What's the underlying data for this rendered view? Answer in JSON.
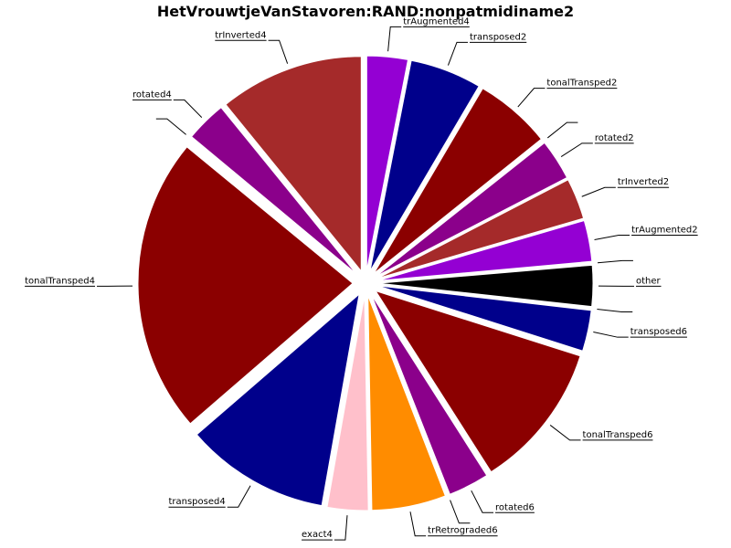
{
  "chart_data": {
    "type": "pie",
    "title": "HetVrouwtjeVanStavoren:RAND:nonpatmidiname2",
    "start_angle_deg": 90,
    "direction": "clockwise",
    "exploded": true,
    "slices": [
      {
        "label": "trAugmented4",
        "value": 3.2,
        "color": "#9400D3"
      },
      {
        "label": "transposed2",
        "value": 5.6,
        "color": "#00008B"
      },
      {
        "label": "tonalTransped2",
        "value": 6.0,
        "color": "#8B0000"
      },
      {
        "label": "",
        "value": 0.1,
        "color": "#8B008B"
      },
      {
        "label": "rotated2",
        "value": 3.2,
        "color": "#8B008B"
      },
      {
        "label": "trInverted2",
        "value": 3.2,
        "color": "#A52A2A"
      },
      {
        "label": "trAugmented2",
        "value": 3.2,
        "color": "#9400D3"
      },
      {
        "label": "",
        "value": 0.1,
        "color": "#9400D3"
      },
      {
        "label": "other",
        "value": 3.2,
        "color": "#000000"
      },
      {
        "label": "",
        "value": 0.1,
        "color": "#000000"
      },
      {
        "label": "transposed6",
        "value": 3.2,
        "color": "#00008B"
      },
      {
        "label": "tonalTransped6",
        "value": 11.5,
        "color": "#8B0000"
      },
      {
        "label": "rotated6",
        "value": 3.2,
        "color": "#8B008B"
      },
      {
        "label": "",
        "value": 0.1,
        "color": "#8B008B"
      },
      {
        "label": "trRetrograded6",
        "value": 5.8,
        "color": "#FF8C00"
      },
      {
        "label": "exact4",
        "value": 3.2,
        "color": "#FFC0CB"
      },
      {
        "label": "transposed4",
        "value": 11.3,
        "color": "#00008B"
      },
      {
        "label": "tonalTransped4",
        "value": 23.2,
        "color": "#8B0000"
      },
      {
        "label": "",
        "value": 0.1,
        "color": "#8B008B"
      },
      {
        "label": "rotated4",
        "value": 3.2,
        "color": "#8B008B"
      },
      {
        "label": "trInverted4",
        "value": 11.3,
        "color": "#A52A2A"
      }
    ]
  }
}
